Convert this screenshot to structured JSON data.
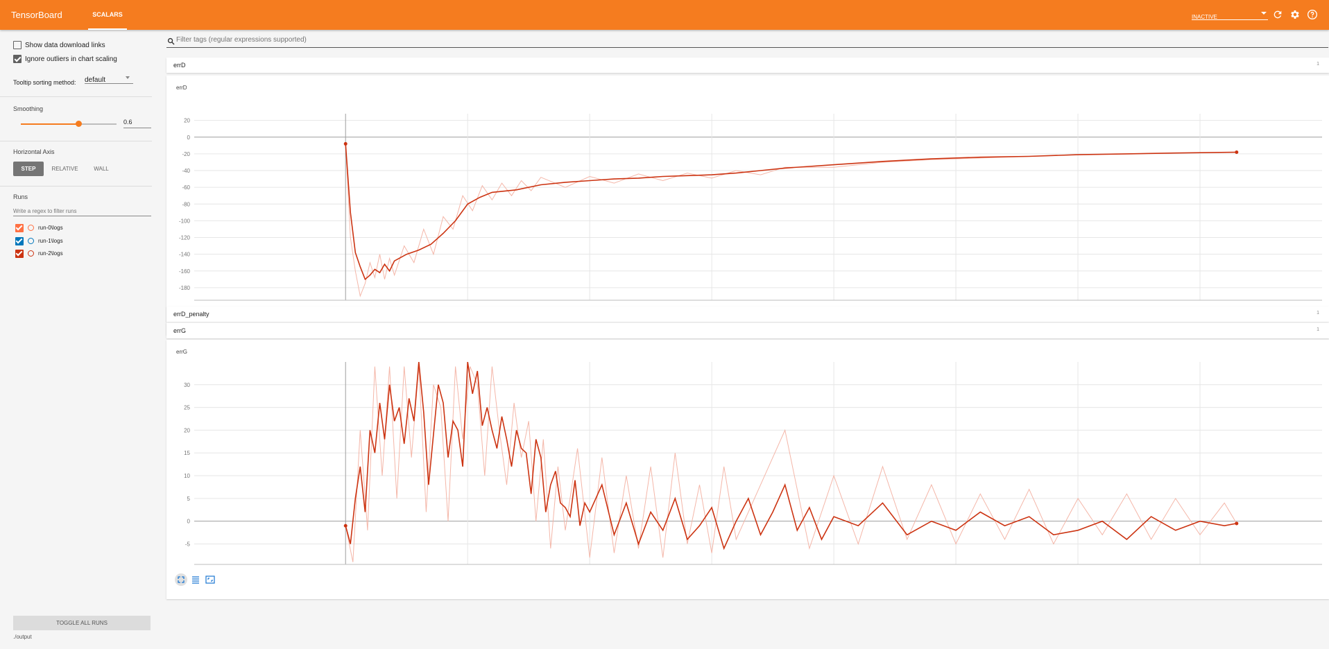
{
  "app": {
    "title": "TensorBoard",
    "tab": "SCALARS",
    "status": "INACTIVE",
    "accent": "#f57c1f"
  },
  "toolbar_icons": [
    "refresh-icon",
    "gear-icon",
    "help-icon"
  ],
  "sidebar": {
    "show_download": "Show data download links",
    "show_download_checked": false,
    "ignore_outliers": "Ignore outliers in chart scaling",
    "ignore_outliers_checked": true,
    "tooltip_label": "Tooltip sorting method:",
    "tooltip_value": "default",
    "smoothing_label": "Smoothing",
    "smoothing_value": "0.6",
    "smoothing_fraction": 0.6,
    "haxis_label": "Horizontal Axis",
    "haxis_options": [
      "STEP",
      "RELATIVE",
      "WALL"
    ],
    "haxis_selected": "STEP",
    "runs_label": "Runs",
    "runs_filter_placeholder": "Write a regex to filter runs",
    "runs": [
      {
        "name": "run-0\\logs",
        "color": "#ff7043",
        "checked": true
      },
      {
        "name": "run-1\\logs",
        "color": "#0077bb",
        "checked": true
      },
      {
        "name": "run-2\\logs",
        "color": "#cc3311",
        "checked": true
      }
    ],
    "toggle_all": "TOGGLE ALL RUNS",
    "output_dir": "./output"
  },
  "main": {
    "filter_placeholder": "Filter tags (regular expressions supported)",
    "categories": [
      {
        "name": "errD",
        "count": "1",
        "expanded": true
      },
      {
        "name": "errD_penalty",
        "count": "1",
        "expanded": false
      },
      {
        "name": "errG",
        "count": "1",
        "expanded": true
      }
    ]
  },
  "chart_data": [
    {
      "type": "line",
      "title": "errD",
      "xlim": [
        -62,
        400
      ],
      "ylim": [
        -195,
        28
      ],
      "xticks": [
        0,
        50,
        100,
        150,
        200,
        250,
        300,
        350
      ],
      "yticks": [
        20,
        0,
        -20,
        -40,
        -60,
        -80,
        -100,
        -120,
        -140,
        -160,
        -180
      ],
      "series": [
        {
          "smoothed": true,
          "color": "#cc3311",
          "x": [
            0,
            2,
            4,
            6,
            8,
            10,
            12,
            14,
            16,
            18,
            20,
            25,
            30,
            35,
            40,
            45,
            50,
            55,
            60,
            70,
            80,
            90,
            100,
            110,
            120,
            130,
            140,
            150,
            160,
            170,
            180,
            190,
            200,
            220,
            240,
            260,
            280,
            300,
            320,
            340,
            365
          ],
          "y": [
            -8,
            -90,
            -138,
            -155,
            -170,
            -165,
            -158,
            -162,
            -152,
            -160,
            -148,
            -140,
            -135,
            -128,
            -115,
            -100,
            -80,
            -72,
            -66,
            -63,
            -57,
            -54,
            -52,
            -50,
            -49,
            -47,
            -46,
            -45,
            -43,
            -40,
            -37,
            -35,
            -33,
            -29,
            -26,
            -24,
            -23,
            -21,
            -20,
            -19,
            -18
          ]
        },
        {
          "smoothed": false,
          "color": "#f4b6a8",
          "x": [
            0,
            2,
            4,
            6,
            8,
            10,
            12,
            14,
            16,
            18,
            20,
            24,
            28,
            32,
            36,
            40,
            44,
            48,
            52,
            56,
            60,
            64,
            68,
            72,
            76,
            80,
            90,
            100,
            110,
            120,
            130,
            140,
            150,
            160,
            170,
            180,
            200,
            220,
            240,
            260,
            280,
            300,
            320,
            340,
            365
          ],
          "y": [
            -8,
            -120,
            -160,
            -190,
            -175,
            -150,
            -168,
            -140,
            -170,
            -145,
            -165,
            -130,
            -150,
            -110,
            -140,
            -95,
            -110,
            -70,
            -88,
            -58,
            -75,
            -55,
            -70,
            -52,
            -64,
            -48,
            -60,
            -47,
            -55,
            -44,
            -52,
            -43,
            -49,
            -40,
            -45,
            -36,
            -36,
            -30,
            -27,
            -25,
            -23,
            -21,
            -20,
            -19,
            -18
          ]
        }
      ]
    },
    {
      "type": "line",
      "title": "errG",
      "xlim": [
        -62,
        400
      ],
      "ylim": [
        -9.5,
        35
      ],
      "xticks": [
        0,
        50,
        100,
        150,
        200,
        250,
        300,
        350
      ],
      "yticks": [
        30,
        25,
        20,
        15,
        10,
        5,
        0,
        -5
      ],
      "ytick_labels": [
        "30",
        "25",
        "20",
        "15",
        "10",
        "5",
        "0",
        "-5"
      ],
      "series": [
        {
          "smoothed": true,
          "color": "#cc3311",
          "x": [
            0,
            2,
            4,
            6,
            8,
            10,
            12,
            14,
            16,
            18,
            20,
            22,
            24,
            26,
            28,
            30,
            32,
            34,
            36,
            38,
            40,
            42,
            44,
            46,
            48,
            50,
            52,
            54,
            56,
            58,
            60,
            62,
            64,
            66,
            68,
            70,
            72,
            74,
            76,
            78,
            80,
            82,
            84,
            86,
            88,
            90,
            92,
            94,
            96,
            98,
            100,
            105,
            110,
            115,
            120,
            125,
            130,
            135,
            140,
            145,
            150,
            155,
            160,
            165,
            170,
            175,
            180,
            185,
            190,
            195,
            200,
            210,
            220,
            230,
            240,
            250,
            260,
            270,
            280,
            290,
            300,
            310,
            320,
            330,
            340,
            350,
            360,
            365
          ],
          "y": [
            -1,
            -5,
            5,
            12,
            2,
            20,
            15,
            26,
            18,
            30,
            22,
            25,
            17,
            27,
            22,
            35,
            24,
            8,
            19,
            30,
            26,
            14,
            22,
            20,
            12,
            35,
            28,
            33,
            21,
            25,
            20,
            16,
            23,
            18,
            12,
            20,
            16,
            15,
            6,
            18,
            14,
            2,
            8,
            11,
            4,
            3,
            1,
            9,
            -1,
            4,
            2,
            8,
            -3,
            4,
            -5,
            2,
            -2,
            5,
            -4,
            -1,
            3,
            -6,
            0,
            5,
            -3,
            2,
            8,
            -2,
            3,
            -4,
            1,
            -1,
            4,
            -3,
            0,
            -2,
            2,
            -1,
            1,
            -3,
            -2,
            0,
            -4,
            1,
            -2,
            0,
            -1,
            -0.5
          ]
        },
        {
          "smoothed": false,
          "color": "#f4b6a8",
          "x": [
            0,
            3,
            6,
            9,
            12,
            15,
            18,
            21,
            24,
            27,
            30,
            33,
            36,
            39,
            42,
            45,
            48,
            51,
            54,
            57,
            60,
            63,
            66,
            69,
            72,
            75,
            78,
            81,
            84,
            87,
            90,
            95,
            100,
            105,
            110,
            115,
            120,
            125,
            130,
            135,
            140,
            145,
            150,
            155,
            160,
            170,
            180,
            190,
            200,
            210,
            220,
            230,
            240,
            250,
            260,
            270,
            280,
            290,
            300,
            310,
            320,
            330,
            340,
            350,
            360,
            365
          ],
          "y": [
            -1,
            -9,
            20,
            -2,
            34,
            10,
            34,
            5,
            34,
            14,
            34,
            2,
            30,
            25,
            0,
            34,
            18,
            34,
            30,
            10,
            34,
            20,
            8,
            26,
            14,
            22,
            0,
            18,
            -6,
            12,
            -2,
            16,
            -8,
            14,
            -7,
            10,
            -6,
            12,
            -8,
            15,
            -5,
            8,
            -7,
            12,
            -4,
            8,
            20,
            -6,
            10,
            -5,
            12,
            -4,
            8,
            -5,
            6,
            -4,
            7,
            -5,
            5,
            -3,
            6,
            -4,
            5,
            -3,
            4,
            -0.5
          ]
        }
      ]
    }
  ]
}
